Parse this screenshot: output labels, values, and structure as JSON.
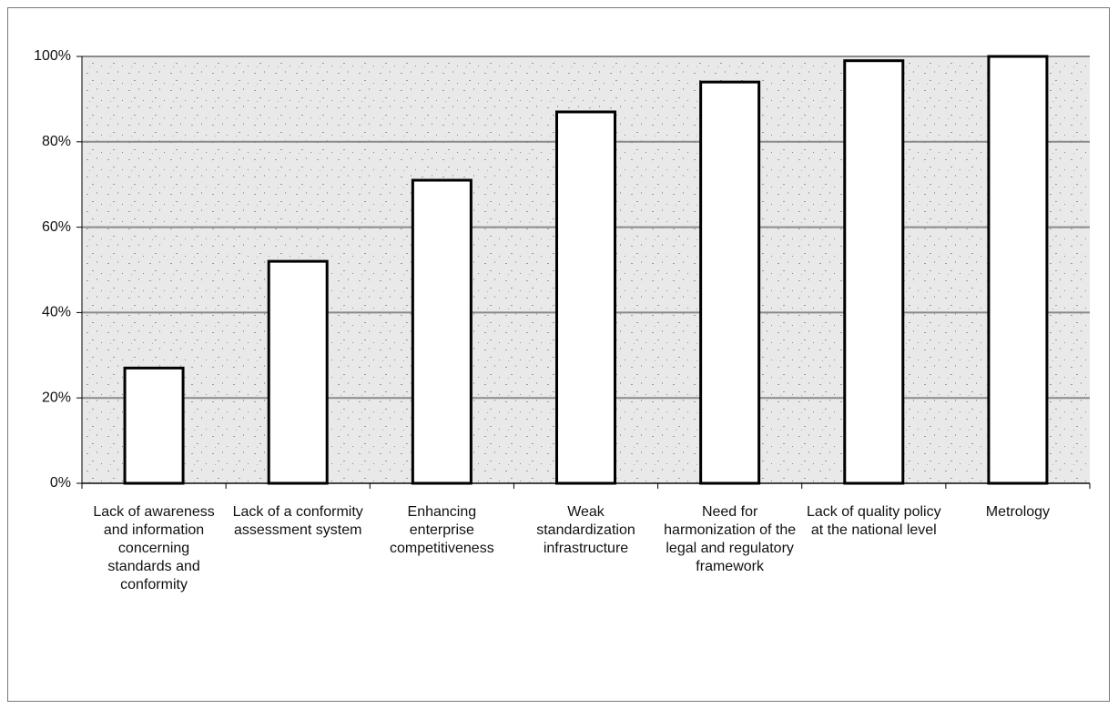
{
  "chart_data": {
    "type": "bar",
    "categories": [
      "Lack of awareness and information concerning standards and conformity",
      "Lack of a conformity assessment system",
      "Enhancing enterprise competitiveness",
      "Weak standardization infrastructure",
      "Need for harmonization of the legal and regulatory framework",
      "Lack of quality policy at the national level",
      "Metrology"
    ],
    "values": [
      27,
      52,
      71,
      87,
      94,
      99,
      100
    ],
    "color": "#ffffff",
    "ylim": [
      0,
      100
    ],
    "yticks": [
      {
        "value": 0,
        "label": "0%"
      },
      {
        "value": 20,
        "label": "20%"
      },
      {
        "value": 40,
        "label": "40%"
      },
      {
        "value": 60,
        "label": "60%"
      },
      {
        "value": 80,
        "label": "80%"
      },
      {
        "value": 100,
        "label": "100%"
      }
    ],
    "grid": true
  }
}
